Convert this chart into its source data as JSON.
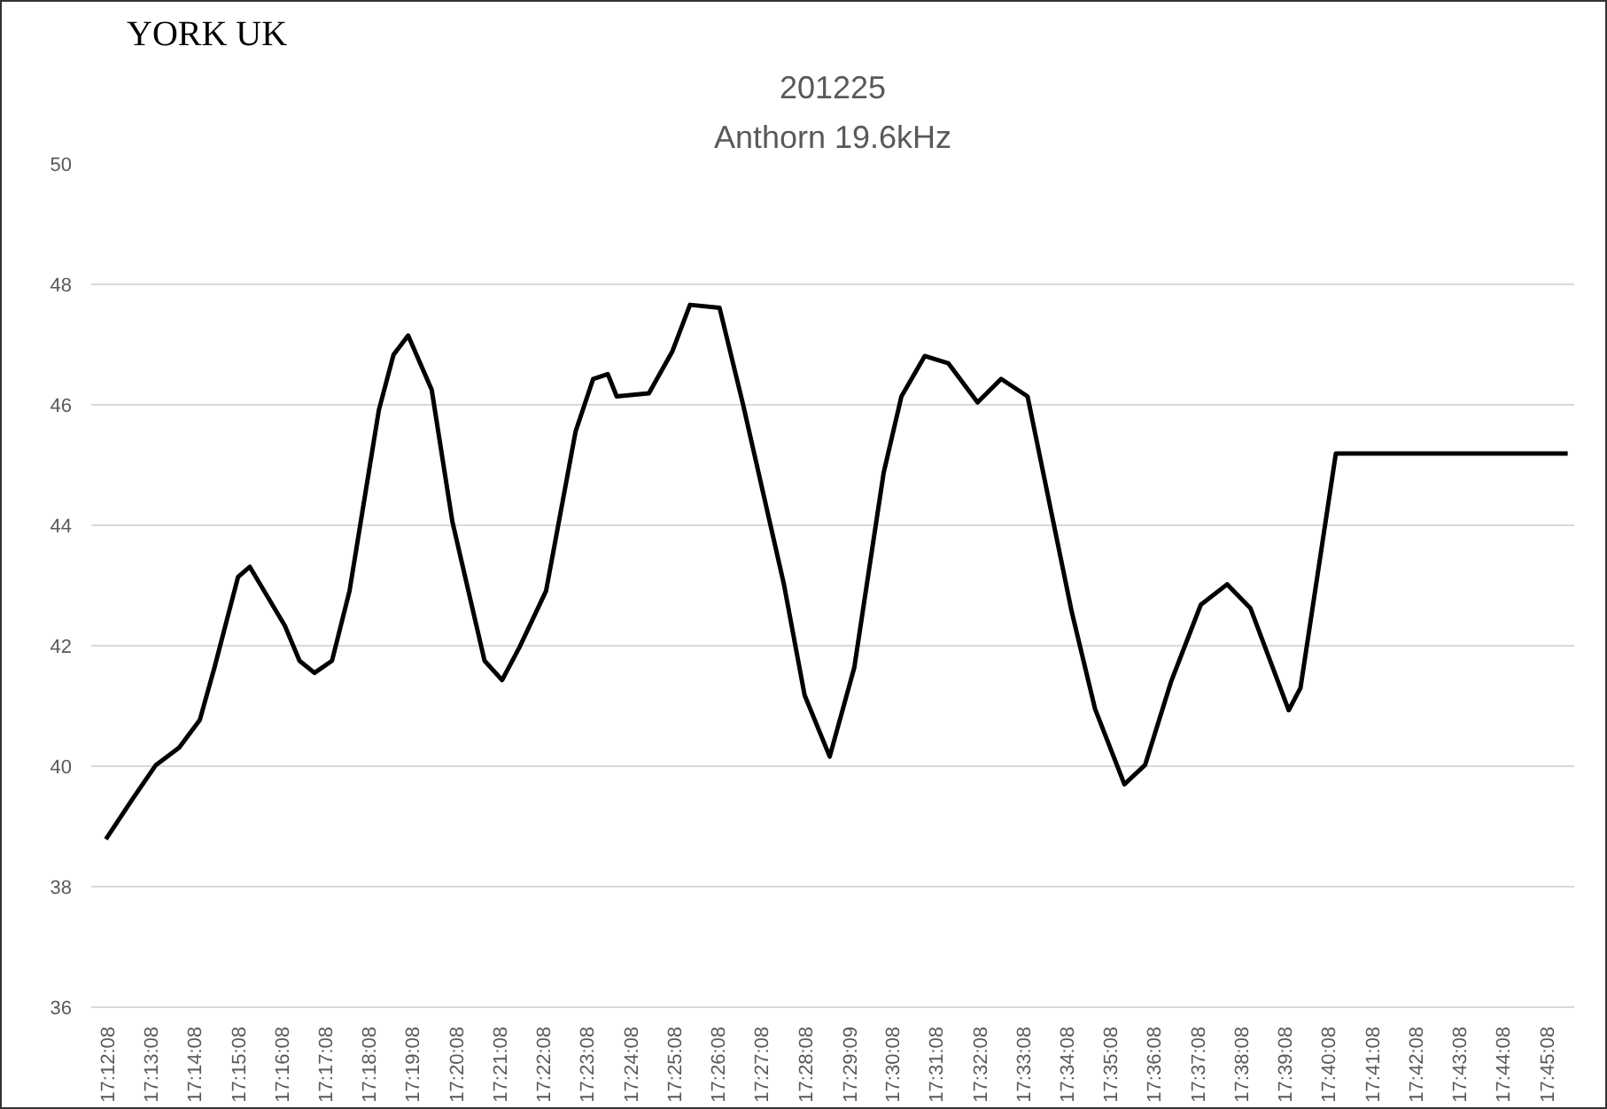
{
  "chart_data": {
    "type": "line",
    "title": "201225",
    "subtitle": "Anthorn 19.6kHz",
    "annotations": [
      "YORK UK"
    ],
    "xlim": [
      17.1955,
      17.7622
    ],
    "ylim": [
      36,
      50
    ],
    "yticks": [
      36,
      38,
      40,
      42,
      44,
      46,
      48,
      50
    ],
    "xticks": [
      {
        "value": 17.20222,
        "label": "17:12:08"
      },
      {
        "value": 17.21889,
        "label": "17:13:08"
      },
      {
        "value": 17.23556,
        "label": "17:14:08"
      },
      {
        "value": 17.25222,
        "label": "17:15:08"
      },
      {
        "value": 17.26889,
        "label": "17:16:08"
      },
      {
        "value": 17.28556,
        "label": "17:17:08"
      },
      {
        "value": 17.30222,
        "label": "17:18:08"
      },
      {
        "value": 17.31889,
        "label": "17:19:08"
      },
      {
        "value": 17.33556,
        "label": "17:20:08"
      },
      {
        "value": 17.35222,
        "label": "17:21:08"
      },
      {
        "value": 17.36889,
        "label": "17:22:08"
      },
      {
        "value": 17.38556,
        "label": "17:23:08"
      },
      {
        "value": 17.40222,
        "label": "17:24:08"
      },
      {
        "value": 17.41889,
        "label": "17:25:08"
      },
      {
        "value": 17.43556,
        "label": "17:26:08"
      },
      {
        "value": 17.45222,
        "label": "17:27:08"
      },
      {
        "value": 17.46889,
        "label": "17:28:08"
      },
      {
        "value": 17.48583,
        "label": "17:29:09"
      },
      {
        "value": 17.50222,
        "label": "17:30:08"
      },
      {
        "value": 17.51889,
        "label": "17:31:08"
      },
      {
        "value": 17.53556,
        "label": "17:32:08"
      },
      {
        "value": 17.55222,
        "label": "17:33:08"
      },
      {
        "value": 17.56889,
        "label": "17:34:08"
      },
      {
        "value": 17.58556,
        "label": "17:35:08"
      },
      {
        "value": 17.60222,
        "label": "17:36:08"
      },
      {
        "value": 17.61889,
        "label": "17:37:08"
      },
      {
        "value": 17.63556,
        "label": "17:38:08"
      },
      {
        "value": 17.65222,
        "label": "17:39:08"
      },
      {
        "value": 17.66889,
        "label": "17:40:08"
      },
      {
        "value": 17.68556,
        "label": "17:41:08"
      },
      {
        "value": 17.70222,
        "label": "17:42:08"
      },
      {
        "value": 17.71889,
        "label": "17:43:08"
      },
      {
        "value": 17.73556,
        "label": "17:44:08"
      },
      {
        "value": 17.75222,
        "label": "17:45:08"
      }
    ],
    "grid": "y",
    "marker": "none",
    "line_style": "solid",
    "series": [
      {
        "color": "#000000",
        "x": [
          17.2011,
          17.2112,
          17.2202,
          17.2291,
          17.237,
          17.2426,
          17.2516,
          17.2561,
          17.2695,
          17.2751,
          17.2808,
          17.2875,
          17.2942,
          17.3054,
          17.311,
          17.3166,
          17.3256,
          17.3335,
          17.3458,
          17.3525,
          17.3592,
          17.3693,
          17.3806,
          17.3873,
          17.3929,
          17.3963,
          17.4086,
          17.4176,
          17.4243,
          17.4356,
          17.4445,
          17.4602,
          17.4681,
          17.4777,
          17.4871,
          17.4983,
          17.5051,
          17.514,
          17.523,
          17.5342,
          17.5432,
          17.5533,
          17.5702,
          17.5791,
          17.5903,
          17.5982,
          17.6082,
          17.6195,
          17.6296,
          17.6385,
          17.6531,
          17.6576,
          17.6711,
          17.7597
        ],
        "values": [
          38.79,
          39.45,
          40.02,
          40.31,
          40.77,
          41.64,
          43.14,
          43.31,
          42.33,
          41.75,
          41.55,
          41.75,
          42.91,
          45.91,
          46.83,
          47.15,
          46.25,
          44.06,
          41.75,
          41.43,
          41.98,
          42.91,
          45.56,
          46.43,
          46.51,
          46.14,
          46.19,
          46.89,
          47.66,
          47.61,
          46.02,
          43.02,
          41.18,
          40.16,
          41.64,
          44.87,
          46.14,
          46.81,
          46.69,
          46.04,
          46.43,
          46.14,
          42.56,
          40.95,
          39.7,
          40.02,
          41.41,
          42.68,
          43.02,
          42.62,
          40.93,
          41.3,
          45.19,
          45.19
        ]
      }
    ]
  }
}
